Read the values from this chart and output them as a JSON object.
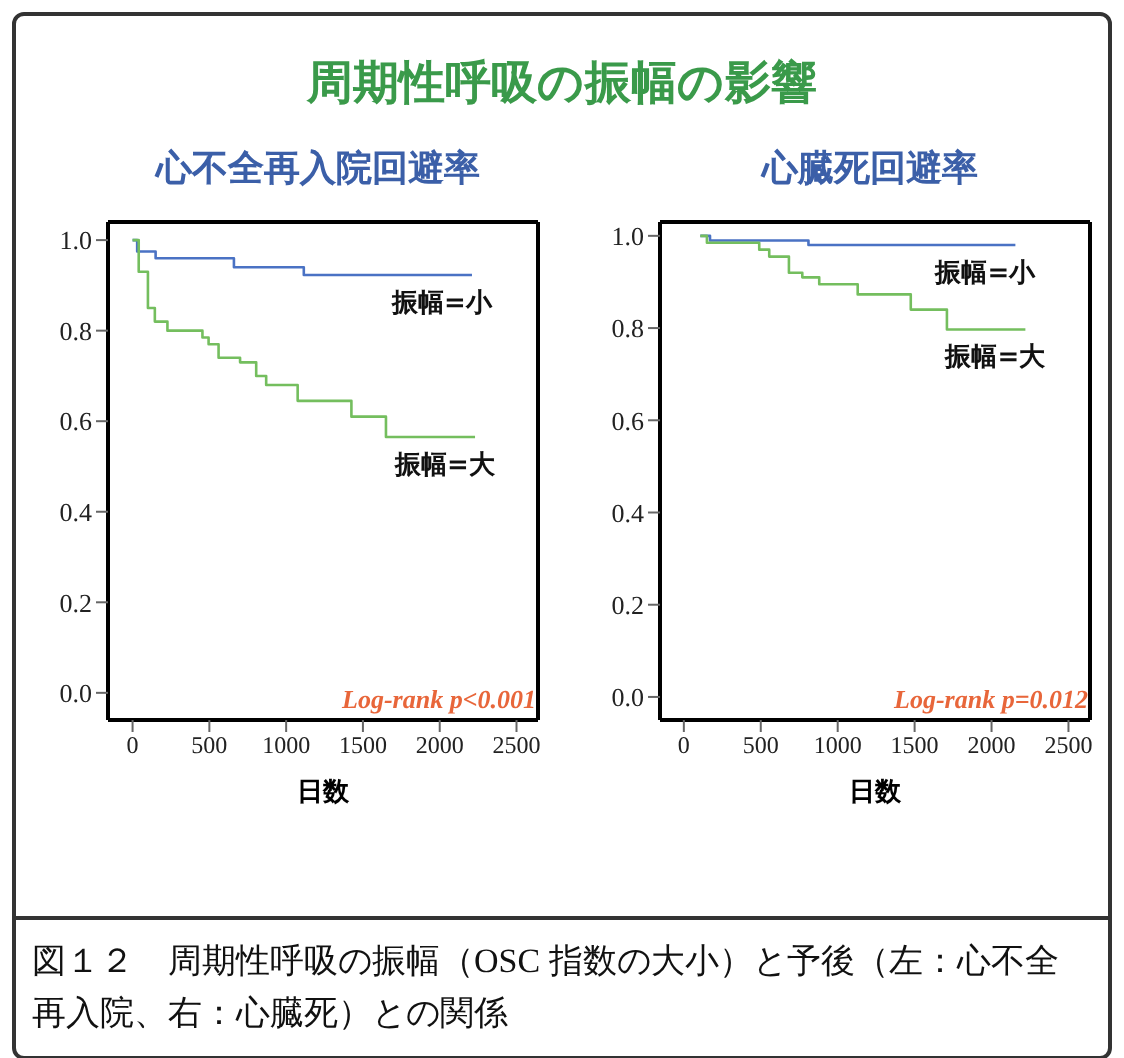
{
  "chart_data": [
    {
      "type": "step",
      "title": "周期性呼吸の振幅の影響",
      "subtitle": "心不全再入院回避率",
      "xlabel": "日数",
      "xlim": [
        -160,
        2640
      ],
      "xticks": [
        0,
        500,
        1000,
        1500,
        2000,
        2500
      ],
      "ylim": [
        -0.06,
        1.04
      ],
      "yticks": [
        {
          "value": 0,
          "label": "0.0"
        },
        {
          "value": 0.2,
          "label": "0.2"
        },
        {
          "value": 0.4,
          "label": "0.4"
        },
        {
          "value": 0.6,
          "label": "0.6"
        },
        {
          "value": 0.8,
          "label": "0.8"
        },
        {
          "value": 1,
          "label": "1.0"
        }
      ],
      "annotations": [
        "Log-rank p<0.001",
        "図１２　周期性呼吸の振幅（OSC 指数の大小）と予後（左：心不全再入院、右：心臓死）との関係"
      ],
      "series": [
        {
          "name": "振幅=小",
          "color": "#4a72c4",
          "x": [
            0,
            30,
            150,
            660,
            1115,
            2210
          ],
          "values": [
            1.0,
            0.975,
            0.96,
            0.94,
            0.923,
            0.923
          ]
        },
        {
          "name": "振幅=大",
          "color": "#74be5e",
          "x": [
            0,
            40,
            100,
            145,
            227,
            455,
            495,
            560,
            700,
            805,
            870,
            1075,
            1425,
            1650,
            2230
          ],
          "values": [
            1.0,
            0.93,
            0.85,
            0.82,
            0.8,
            0.785,
            0.77,
            0.74,
            0.73,
            0.7,
            0.68,
            0.645,
            0.61,
            0.565,
            0.565
          ]
        }
      ]
    },
    {
      "type": "step",
      "subtitle": "心臓死回避率",
      "xlabel": "日数",
      "xlim": [
        -155,
        2640
      ],
      "xticks": [
        0,
        500,
        1000,
        1500,
        2000,
        2500
      ],
      "ylim": [
        -0.05,
        1.03
      ],
      "yticks": [
        {
          "value": 0,
          "label": "0.0"
        },
        {
          "value": 0.2,
          "label": "0.2"
        },
        {
          "value": 0.4,
          "label": "0.4"
        },
        {
          "value": 0.6,
          "label": "0.6"
        },
        {
          "value": 0.8,
          "label": "0.8"
        },
        {
          "value": 1,
          "label": "1.0"
        }
      ],
      "annotations": [
        "Log-rank p=0.012"
      ],
      "series": [
        {
          "name": "振幅=小",
          "color": "#4a72c4",
          "x": [
            107,
            170,
            810,
            2155
          ],
          "values": [
            1.0,
            0.99,
            0.98,
            0.98
          ]
        },
        {
          "name": "振幅=大",
          "color": "#74be5e",
          "x": [
            107,
            150,
            490,
            555,
            683,
            770,
            880,
            1130,
            1475,
            1710,
            2220
          ],
          "values": [
            1.0,
            0.985,
            0.97,
            0.955,
            0.92,
            0.91,
            0.895,
            0.873,
            0.84,
            0.797,
            0.797
          ]
        }
      ]
    }
  ]
}
